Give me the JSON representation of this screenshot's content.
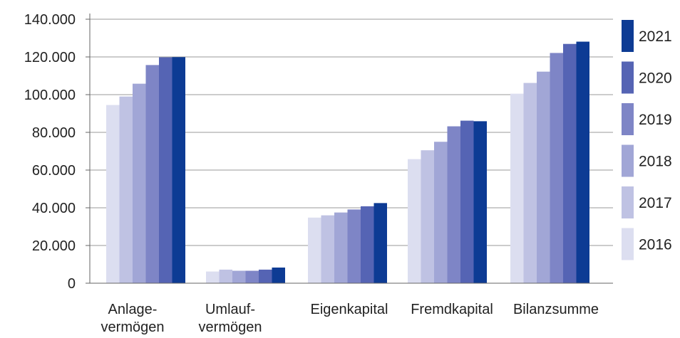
{
  "chart_data": {
    "type": "bar",
    "categories": [
      [
        "Anlage-",
        "vermögen"
      ],
      [
        "Umlauf-",
        "vermögen"
      ],
      [
        "Eigenkapital"
      ],
      [
        "Fremdkapital"
      ],
      [
        "Bilanzsumme"
      ]
    ],
    "series": [
      {
        "name": "2016",
        "color": "#dcdef0",
        "values": [
          94500,
          6200,
          34800,
          65800,
          100500
        ]
      },
      {
        "name": "2017",
        "color": "#bfc2e3",
        "values": [
          99000,
          7200,
          36000,
          70500,
          106200
        ]
      },
      {
        "name": "2018",
        "color": "#a1a6d6",
        "values": [
          105800,
          6600,
          37500,
          75000,
          112200
        ]
      },
      {
        "name": "2019",
        "color": "#7e85c6",
        "values": [
          115700,
          6600,
          39100,
          83200,
          122100
        ]
      },
      {
        "name": "2020",
        "color": "#5564b4",
        "values": [
          119800,
          7200,
          40800,
          86200,
          126900
        ]
      },
      {
        "name": "2021",
        "color": "#0d3b94",
        "values": [
          119900,
          8300,
          42500,
          85900,
          128100
        ]
      }
    ],
    "ylim": [
      0,
      140000
    ],
    "yticks": [
      0,
      20000,
      40000,
      60000,
      80000,
      100000,
      120000,
      140000
    ],
    "ytick_labels": [
      "0",
      "20.000",
      "40.000",
      "60.000",
      "80.000",
      "100.000",
      "120.000",
      "140.000"
    ],
    "grid": true,
    "legend": "right",
    "title": "",
    "xlabel": "",
    "ylabel": ""
  }
}
